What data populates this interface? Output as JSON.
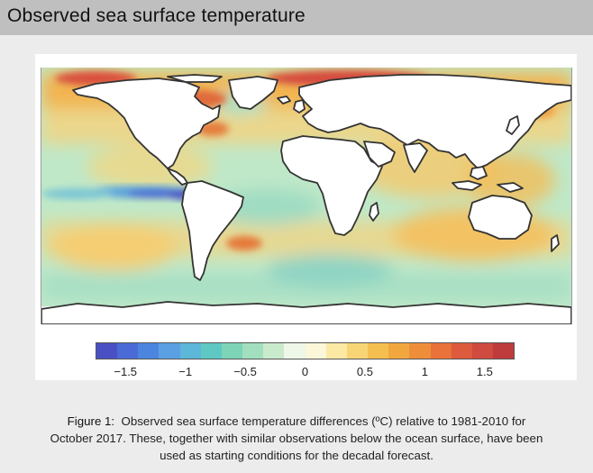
{
  "header": {
    "title": "Observed sea surface temperature"
  },
  "colorbar": {
    "ticks": [
      {
        "value": -1.5,
        "label": "−1.5"
      },
      {
        "value": -1,
        "label": "−1"
      },
      {
        "value": -0.5,
        "label": "−0.5"
      },
      {
        "value": 0,
        "label": "0"
      },
      {
        "value": 0.5,
        "label": "0.5"
      },
      {
        "value": 1,
        "label": "1"
      },
      {
        "value": 1.5,
        "label": "1.5"
      }
    ],
    "range": [
      -1.75,
      1.75
    ],
    "colors": [
      "#4b4fc4",
      "#4a6ad6",
      "#4b85df",
      "#5aa0e3",
      "#5db7d8",
      "#5fc8c2",
      "#7dd4b6",
      "#a1dfbe",
      "#c9ebcc",
      "#eef7e8",
      "#fbf7d8",
      "#fbe9a4",
      "#f8d574",
      "#f5bf4f",
      "#f2a640",
      "#ee8e3a",
      "#e8723a",
      "#dd5a3c",
      "#cf4a3f",
      "#bf3c3c"
    ]
  },
  "map": {
    "ocean_base": "#b9e6c6",
    "land_color": "#ffffff",
    "coast_color": "#333333"
  },
  "caption": {
    "label": "Figure 1:",
    "line1": "Observed sea surface temperature differences (ºC) relative to 1981-2010 for",
    "line2": "October 2017. These, together with similar observations below the ocean surface, have been",
    "line3": "used as starting conditions for the decadal forecast."
  }
}
